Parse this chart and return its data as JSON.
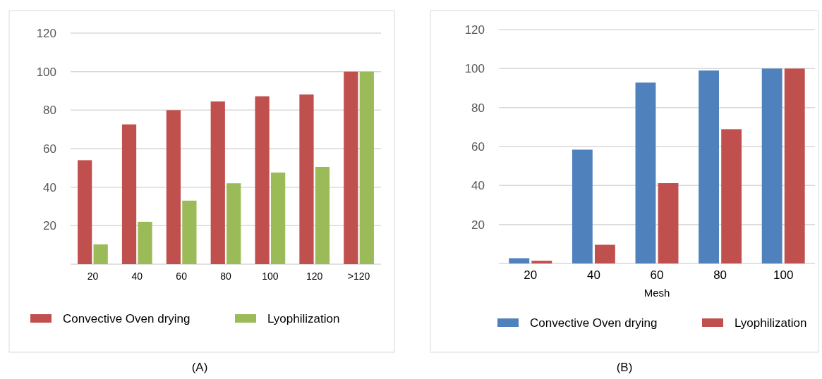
{
  "chart_data": [
    {
      "type": "bar",
      "categories": [
        "20",
        "40",
        "60",
        "80",
        "100",
        "120",
        ">120"
      ],
      "series": [
        {
          "name": "Convective Oven drying",
          "color": "#c0504d",
          "values": [
            54,
            72.6,
            80,
            84.5,
            87.2,
            88.1,
            100
          ]
        },
        {
          "name": "Lyophilization",
          "color": "#9bbb59",
          "values": [
            10.3,
            22,
            33,
            42,
            47.6,
            50.5,
            100
          ]
        }
      ],
      "ylim": [
        0,
        120
      ],
      "yticks": [
        20,
        40,
        60,
        80,
        100,
        120
      ],
      "grid": "y",
      "legend": "bottom",
      "annotations": [
        "(A)"
      ]
    },
    {
      "type": "bar",
      "categories": [
        "20",
        "40",
        "60",
        "80",
        "100"
      ],
      "xlabel": "Mesh",
      "series": [
        {
          "name": "Convective Oven drying",
          "color": "#4f81bd",
          "values": [
            2.7,
            58.4,
            92.8,
            99,
            100
          ]
        },
        {
          "name": "Lyophilization",
          "color": "#c0504d",
          "values": [
            1.4,
            9.6,
            41.2,
            68.9,
            100
          ]
        }
      ],
      "ylim": [
        0,
        120
      ],
      "yticks": [
        20,
        40,
        60,
        80,
        100,
        120
      ],
      "grid": "y",
      "legend": "bottom",
      "annotations": [
        "(B)"
      ]
    }
  ]
}
